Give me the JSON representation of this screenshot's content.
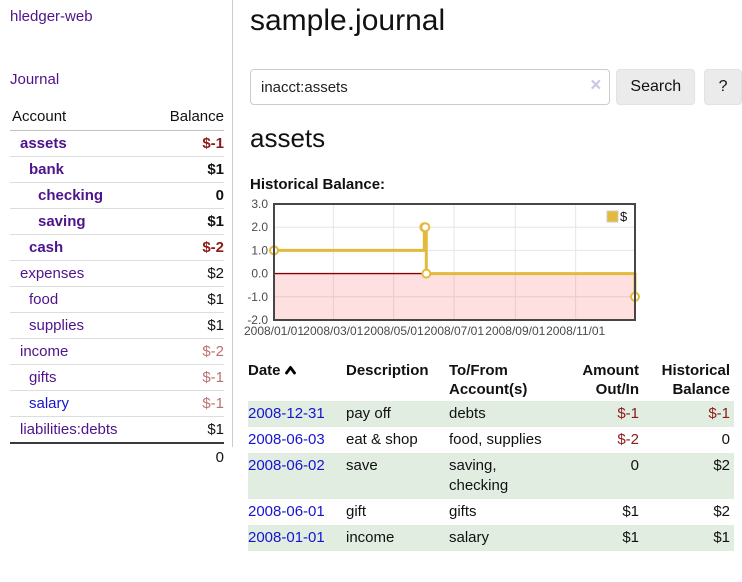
{
  "brand": "hledger-web",
  "colors": {
    "link_purple": "#4e148c",
    "link_blue": "#1515d6",
    "negative_strong": "#8e1919",
    "negative_muted": "#bd7272",
    "row_shade_green": "#e1ede1",
    "button_gray": "#ebebeb"
  },
  "sidebar": {
    "journal_link": "Journal",
    "table": {
      "headers": {
        "account": "Account",
        "balance": "Balance"
      },
      "rows": [
        {
          "name": "assets",
          "depth": 0,
          "bold": true,
          "link": "purple",
          "balance": "$-1",
          "balance_color": "neg"
        },
        {
          "name": "bank",
          "depth": 1,
          "bold": true,
          "link": "purple",
          "balance": "$1",
          "balance_color": "pos"
        },
        {
          "name": "checking",
          "depth": 2,
          "bold": true,
          "link": "purple",
          "balance": "0",
          "balance_color": "pos"
        },
        {
          "name": "saving",
          "depth": 2,
          "bold": true,
          "link": "purple",
          "balance": "$1",
          "balance_color": "pos"
        },
        {
          "name": "cash",
          "depth": 1,
          "bold": true,
          "link": "purple",
          "balance": "$-2",
          "balance_color": "neg"
        },
        {
          "name": "expenses",
          "depth": 0,
          "bold": false,
          "link": "purple",
          "balance": "$2",
          "balance_color": "pos"
        },
        {
          "name": "food",
          "depth": 1,
          "bold": false,
          "link": "purple",
          "balance": "$1",
          "balance_color": "pos"
        },
        {
          "name": "supplies",
          "depth": 1,
          "bold": false,
          "link": "purple",
          "balance": "$1",
          "balance_color": "pos"
        },
        {
          "name": "income",
          "depth": 0,
          "bold": false,
          "link": "purple",
          "balance": "$-2",
          "balance_color": "neg-muted"
        },
        {
          "name": "gifts",
          "depth": 1,
          "bold": false,
          "link": "purple",
          "balance": "$-1",
          "balance_color": "neg-muted"
        },
        {
          "name": "salary",
          "depth": 1,
          "bold": false,
          "link": "blue",
          "balance": "$-1",
          "balance_color": "neg-muted"
        },
        {
          "name": "liabilities:debts",
          "depth": 0,
          "bold": false,
          "link": "purple",
          "balance": "$1",
          "balance_color": "pos",
          "rule_below": true
        }
      ],
      "total": "0"
    }
  },
  "main": {
    "title": "sample.journal",
    "search": {
      "value": "inacct:assets",
      "clear_icon": "×",
      "button_label": "Search",
      "help_label": "?"
    },
    "account_heading": "assets",
    "chart_label": "Historical Balance:",
    "register": {
      "headers": {
        "date": "Date",
        "description": "Description",
        "tofrom": "To/From Account(s)",
        "amount": "Amount Out/In",
        "historical": "Historical Balance"
      },
      "rows": [
        {
          "date": "2008-12-31",
          "description": "pay off",
          "tofrom": "debts",
          "amount": "$-1",
          "amount_neg": true,
          "historical": "$-1",
          "historical_neg": true,
          "shaded": true
        },
        {
          "date": "2008-06-03",
          "description": "eat & shop",
          "tofrom": "food, supplies",
          "amount": "$-2",
          "amount_neg": true,
          "historical": "0",
          "historical_neg": false,
          "shaded": false
        },
        {
          "date": "2008-06-02",
          "description": "save",
          "tofrom": "saving, checking",
          "amount": "0",
          "amount_neg": false,
          "historical": "$2",
          "historical_neg": false,
          "shaded": true
        },
        {
          "date": "2008-06-01",
          "description": "gift",
          "tofrom": "gifts",
          "amount": "$1",
          "amount_neg": false,
          "historical": "$2",
          "historical_neg": false,
          "shaded": false
        },
        {
          "date": "2008-01-01",
          "description": "income",
          "tofrom": "salary",
          "amount": "$1",
          "amount_neg": false,
          "historical": "$1",
          "historical_neg": false,
          "shaded": true
        }
      ]
    }
  },
  "chart_data": {
    "type": "line",
    "title": "Historical Balance:",
    "legend": "$",
    "legend_position": "top-right",
    "grid": true,
    "xlim_days": [
      0,
      365
    ],
    "ylim": [
      -2,
      3
    ],
    "y_ticks": [
      3.0,
      2.0,
      1.0,
      0.0,
      -1.0,
      -2.0
    ],
    "x_ticks": [
      {
        "day": 0,
        "label": "2008/01/01"
      },
      {
        "day": 60,
        "label": "2008/03/01"
      },
      {
        "day": 121,
        "label": "2008/05/01"
      },
      {
        "day": 182,
        "label": "2008/07/01"
      },
      {
        "day": 244,
        "label": "2008/09/01"
      },
      {
        "day": 305,
        "label": "2008/11/01"
      }
    ],
    "series": [
      {
        "name": "$",
        "color": "#e4ba3d",
        "steps": true,
        "points": [
          {
            "date": "2008/01/01",
            "day": 0,
            "y": 1
          },
          {
            "date": "2008/06/01",
            "day": 152,
            "y": 2
          },
          {
            "date": "2008/06/02",
            "day": 153,
            "y": 2
          },
          {
            "date": "2008/06/03",
            "day": 154,
            "y": 0
          },
          {
            "date": "2008/12/31",
            "day": 365,
            "y": -1
          }
        ]
      }
    ],
    "zero_line_color": "#8b0000",
    "negative_region_color": "rgba(255,0,0,0.12)",
    "grid_color": "#e6e6e6",
    "border_color": "#464646",
    "tick_label_color": "#4a4a4a"
  }
}
